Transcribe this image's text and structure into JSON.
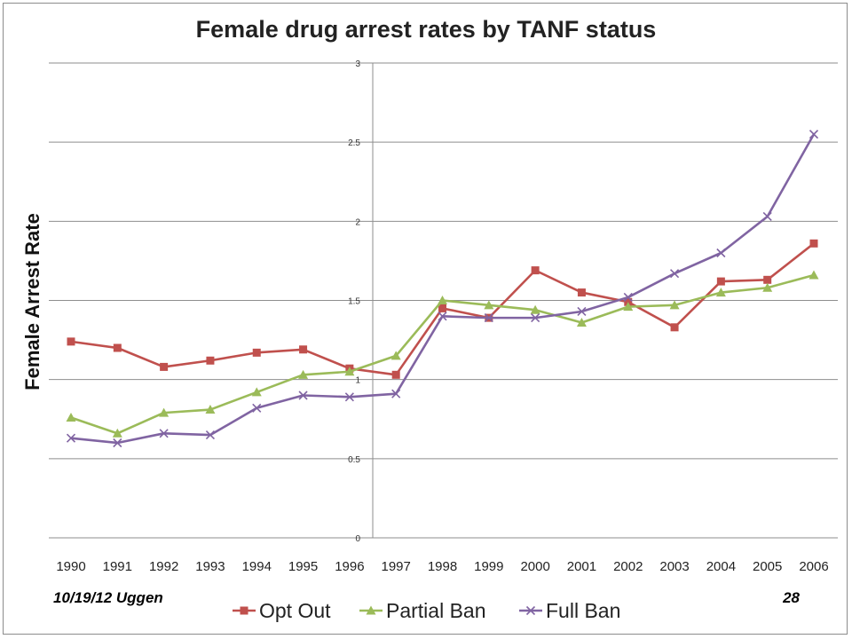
{
  "chart_data": {
    "type": "line",
    "title": "Female drug arrest rates by TANF status",
    "ylabel": "Female Arrest Rate",
    "xlabel": "",
    "categories": [
      "1990",
      "1991",
      "1992",
      "1993",
      "1994",
      "1995",
      "1996",
      "1997",
      "1998",
      "1999",
      "2000",
      "2001",
      "2002",
      "2003",
      "2004",
      "2005",
      "2006"
    ],
    "ylim": [
      0,
      3
    ],
    "yticks": [
      "0",
      "0.5",
      "1",
      "1.5",
      "2",
      "2.5",
      "3"
    ],
    "grid": true,
    "legend_position": "bottom",
    "series": [
      {
        "name": "Opt Out",
        "color": "#c0504d",
        "marker": "square",
        "values": [
          1.24,
          1.2,
          1.08,
          1.12,
          1.17,
          1.19,
          1.07,
          1.03,
          1.45,
          1.39,
          1.69,
          1.55,
          1.49,
          1.33,
          1.62,
          1.63,
          1.86
        ]
      },
      {
        "name": "Partial Ban",
        "color": "#9bbb59",
        "marker": "triangle",
        "values": [
          0.76,
          0.66,
          0.79,
          0.81,
          0.92,
          1.03,
          1.05,
          1.15,
          1.5,
          1.47,
          1.44,
          1.36,
          1.46,
          1.47,
          1.55,
          1.58,
          1.66
        ]
      },
      {
        "name": "Full Ban",
        "color": "#8064a2",
        "marker": "x",
        "values": [
          0.63,
          0.6,
          0.66,
          0.65,
          0.82,
          0.9,
          0.89,
          0.91,
          1.4,
          1.39,
          1.39,
          1.43,
          1.52,
          1.67,
          1.8,
          2.03,
          2.55
        ]
      }
    ]
  },
  "footer": {
    "left": "10/19/12 Uggen",
    "right": "28"
  }
}
